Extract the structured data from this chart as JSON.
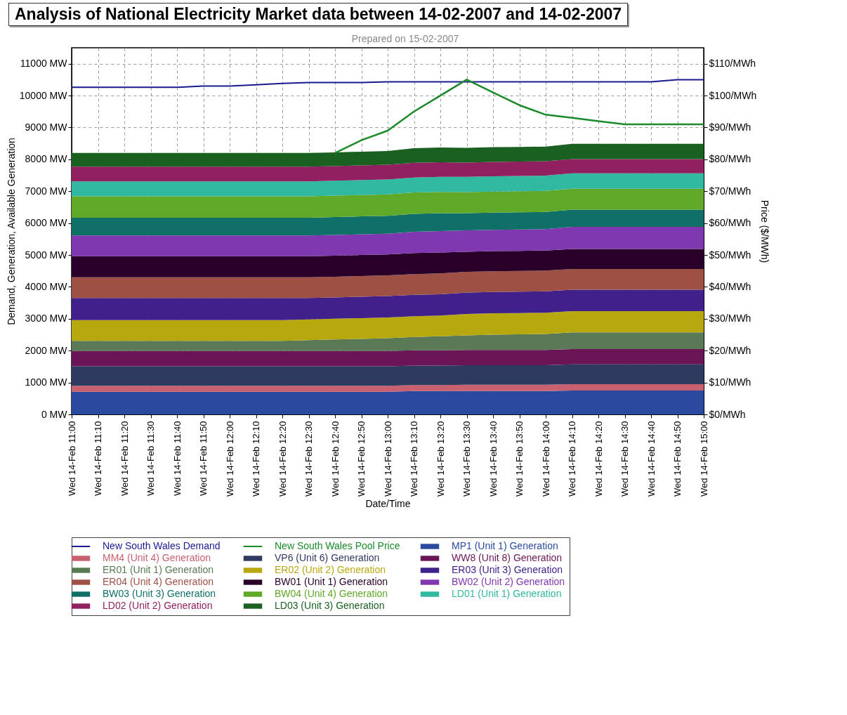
{
  "chart_data": {
    "type": "area",
    "stacked": true,
    "title": "Analysis of National Electricity Market data between 14-02-2007 and 14-02-2007",
    "subtitle": "Prepared on 15-02-2007",
    "xlabel": "Date/Time",
    "ylabel": "Demand, Generation, Available Generation",
    "y2label": "Price ($/MWh)",
    "categories": [
      "Wed 14-Feb 11:00",
      "Wed 14-Feb 11:10",
      "Wed 14-Feb 11:20",
      "Wed 14-Feb 11:30",
      "Wed 14-Feb 11:40",
      "Wed 14-Feb 11:50",
      "Wed 14-Feb 12:00",
      "Wed 14-Feb 12:10",
      "Wed 14-Feb 12:20",
      "Wed 14-Feb 12:30",
      "Wed 14-Feb 12:40",
      "Wed 14-Feb 12:50",
      "Wed 14-Feb 13:00",
      "Wed 14-Feb 13:10",
      "Wed 14-Feb 13:20",
      "Wed 14-Feb 13:30",
      "Wed 14-Feb 13:40",
      "Wed 14-Feb 13:50",
      "Wed 14-Feb 14:00",
      "Wed 14-Feb 14:10",
      "Wed 14-Feb 14:20",
      "Wed 14-Feb 14:30",
      "Wed 14-Feb 14:40",
      "Wed 14-Feb 14:50",
      "Wed 14-Feb 15:00"
    ],
    "series": [
      {
        "name": "New South Wales Demand",
        "type": "line",
        "color": "#1a1a90",
        "values": [
          10260,
          10260,
          10260,
          10260,
          10260,
          10300,
          10300,
          10340,
          10380,
          10410,
          10410,
          10410,
          10430,
          10430,
          10430,
          10430,
          10430,
          10430,
          10430,
          10430,
          10430,
          10430,
          10430,
          10500,
          10500
        ]
      },
      {
        "name": "New South Wales Pool Price",
        "type": "line",
        "axis": "y2",
        "color": "#1a8a2a",
        "values": [
          null,
          null,
          null,
          null,
          null,
          null,
          null,
          null,
          null,
          null,
          82,
          86,
          89,
          95,
          100,
          105,
          101,
          97,
          94,
          93,
          92,
          91,
          91,
          91,
          91
        ]
      },
      {
        "name": "MP1 (Unit 1) Generation",
        "color": "#2a4aa0",
        "values": [
          710,
          710,
          710,
          710,
          710,
          710,
          710,
          710,
          710,
          710,
          710,
          710,
          710,
          730,
          730,
          730,
          730,
          730,
          730,
          750,
          750,
          750,
          750,
          750,
          750
        ]
      },
      {
        "name": "MM4 (Unit 4) Generation",
        "color": "#c86070",
        "values": [
          190,
          190,
          190,
          190,
          190,
          190,
          190,
          190,
          190,
          190,
          190,
          190,
          190,
          190,
          190,
          200,
          200,
          200,
          200,
          200,
          200,
          200,
          200,
          200,
          200
        ]
      },
      {
        "name": "VP6 (Unit 6) Generation",
        "color": "#2e3a60",
        "values": [
          610,
          610,
          610,
          610,
          610,
          610,
          610,
          610,
          610,
          610,
          610,
          610,
          610,
          610,
          610,
          610,
          610,
          610,
          610,
          620,
          620,
          620,
          620,
          620,
          620
        ]
      },
      {
        "name": "WW8 (Unit 8) Generation",
        "color": "#6a1555",
        "values": [
          480,
          480,
          480,
          480,
          480,
          480,
          480,
          480,
          480,
          480,
          480,
          480,
          480,
          480,
          480,
          480,
          480,
          480,
          480,
          480,
          480,
          480,
          480,
          480,
          480
        ]
      },
      {
        "name": "ER01 (Unit 1) Generation",
        "color": "#5a7a55",
        "values": [
          320,
          320,
          320,
          320,
          320,
          320,
          320,
          320,
          320,
          340,
          360,
          380,
          400,
          420,
          440,
          460,
          480,
          490,
          500,
          520,
          520,
          520,
          520,
          520,
          520
        ]
      },
      {
        "name": "ER02 (Unit 2) Generation",
        "color": "#b8a810",
        "values": [
          650,
          650,
          650,
          650,
          650,
          650,
          650,
          650,
          650,
          650,
          650,
          650,
          650,
          650,
          650,
          670,
          670,
          670,
          670,
          670,
          670,
          670,
          670,
          670,
          670
        ]
      },
      {
        "name": "ER03 (Unit 3) Generation",
        "color": "#40208a",
        "values": [
          690,
          690,
          690,
          690,
          690,
          690,
          690,
          690,
          690,
          670,
          670,
          670,
          670,
          670,
          670,
          670,
          670,
          670,
          670,
          670,
          670,
          670,
          670,
          670,
          670
        ]
      },
      {
        "name": "ER04 (Unit 4) Generation",
        "color": "#9e5045",
        "values": [
          650,
          650,
          650,
          650,
          650,
          650,
          650,
          650,
          650,
          650,
          650,
          650,
          650,
          650,
          650,
          650,
          650,
          650,
          650,
          650,
          650,
          650,
          650,
          650,
          650
        ]
      },
      {
        "name": "BW01 (Unit 1) Generation",
        "color": "#28002a",
        "values": [
          660,
          660,
          660,
          660,
          660,
          660,
          660,
          660,
          660,
          660,
          660,
          660,
          660,
          660,
          660,
          630,
          630,
          630,
          630,
          630,
          630,
          630,
          630,
          630,
          630
        ]
      },
      {
        "name": "BW02 (Unit 2) Generation",
        "color": "#8038b0",
        "values": [
          650,
          650,
          650,
          650,
          650,
          650,
          650,
          650,
          650,
          650,
          650,
          650,
          650,
          670,
          670,
          670,
          670,
          670,
          670,
          690,
          690,
          690,
          690,
          690,
          690
        ]
      },
      {
        "name": "BW03 (Unit 3) Generation",
        "color": "#107068",
        "values": [
          560,
          560,
          560,
          560,
          560,
          560,
          560,
          560,
          560,
          560,
          560,
          560,
          560,
          560,
          560,
          540,
          540,
          540,
          540,
          540,
          540,
          540,
          540,
          540,
          540
        ]
      },
      {
        "name": "BW04 (Unit 4) Generation",
        "color": "#60a828",
        "values": [
          670,
          670,
          670,
          670,
          670,
          670,
          670,
          670,
          670,
          670,
          670,
          670,
          670,
          670,
          670,
          660,
          660,
          660,
          660,
          660,
          660,
          660,
          660,
          660,
          660
        ]
      },
      {
        "name": "LD01 (Unit 1) Generation",
        "color": "#30b8a0",
        "values": [
          470,
          470,
          470,
          470,
          470,
          470,
          470,
          470,
          470,
          470,
          470,
          470,
          470,
          470,
          470,
          480,
          480,
          480,
          480,
          480,
          480,
          480,
          480,
          480,
          480
        ]
      },
      {
        "name": "LD02 (Unit 2) Generation",
        "color": "#902060",
        "values": [
          460,
          460,
          460,
          460,
          460,
          460,
          460,
          460,
          460,
          460,
          460,
          460,
          460,
          460,
          460,
          450,
          450,
          450,
          450,
          450,
          450,
          450,
          450,
          450,
          450
        ]
      },
      {
        "name": "LD03 (Unit 3) Generation",
        "color": "#1a6020",
        "values": [
          430,
          430,
          430,
          430,
          430,
          430,
          430,
          430,
          430,
          430,
          430,
          430,
          430,
          460,
          460,
          460,
          460,
          460,
          460,
          480,
          480,
          480,
          480,
          480,
          480
        ]
      }
    ],
    "ylim": [
      0,
      11500
    ],
    "yticks": [
      {
        "value": 0,
        "label": "0 MW"
      },
      {
        "value": 1000,
        "label": "1000 MW"
      },
      {
        "value": 2000,
        "label": "2000 MW"
      },
      {
        "value": 3000,
        "label": "3000 MW"
      },
      {
        "value": 4000,
        "label": "4000 MW"
      },
      {
        "value": 5000,
        "label": "5000 MW"
      },
      {
        "value": 6000,
        "label": "6000 MW"
      },
      {
        "value": 7000,
        "label": "7000 MW"
      },
      {
        "value": 8000,
        "label": "8000 MW"
      },
      {
        "value": 9000,
        "label": "9000 MW"
      },
      {
        "value": 10000,
        "label": "10000 MW"
      },
      {
        "value": 11000,
        "label": "11000 MW"
      }
    ],
    "y2lim": [
      0,
      115
    ],
    "y2ticks": [
      {
        "value": 0,
        "label": "$0/MWh"
      },
      {
        "value": 10,
        "label": "$10/MWh"
      },
      {
        "value": 20,
        "label": "$20/MWh"
      },
      {
        "value": 30,
        "label": "$30/MWh"
      },
      {
        "value": 40,
        "label": "$40/MWh"
      },
      {
        "value": 50,
        "label": "$50/MWh"
      },
      {
        "value": 60,
        "label": "$60/MWh"
      },
      {
        "value": 70,
        "label": "$70/MWh"
      },
      {
        "value": 80,
        "label": "$80/MWh"
      },
      {
        "value": 90,
        "label": "$90/MWh"
      },
      {
        "value": 100,
        "label": "$100/MWh"
      },
      {
        "value": 110,
        "label": "$110/MWh"
      }
    ],
    "grid": true,
    "legend": "bottom",
    "marker": "none"
  }
}
